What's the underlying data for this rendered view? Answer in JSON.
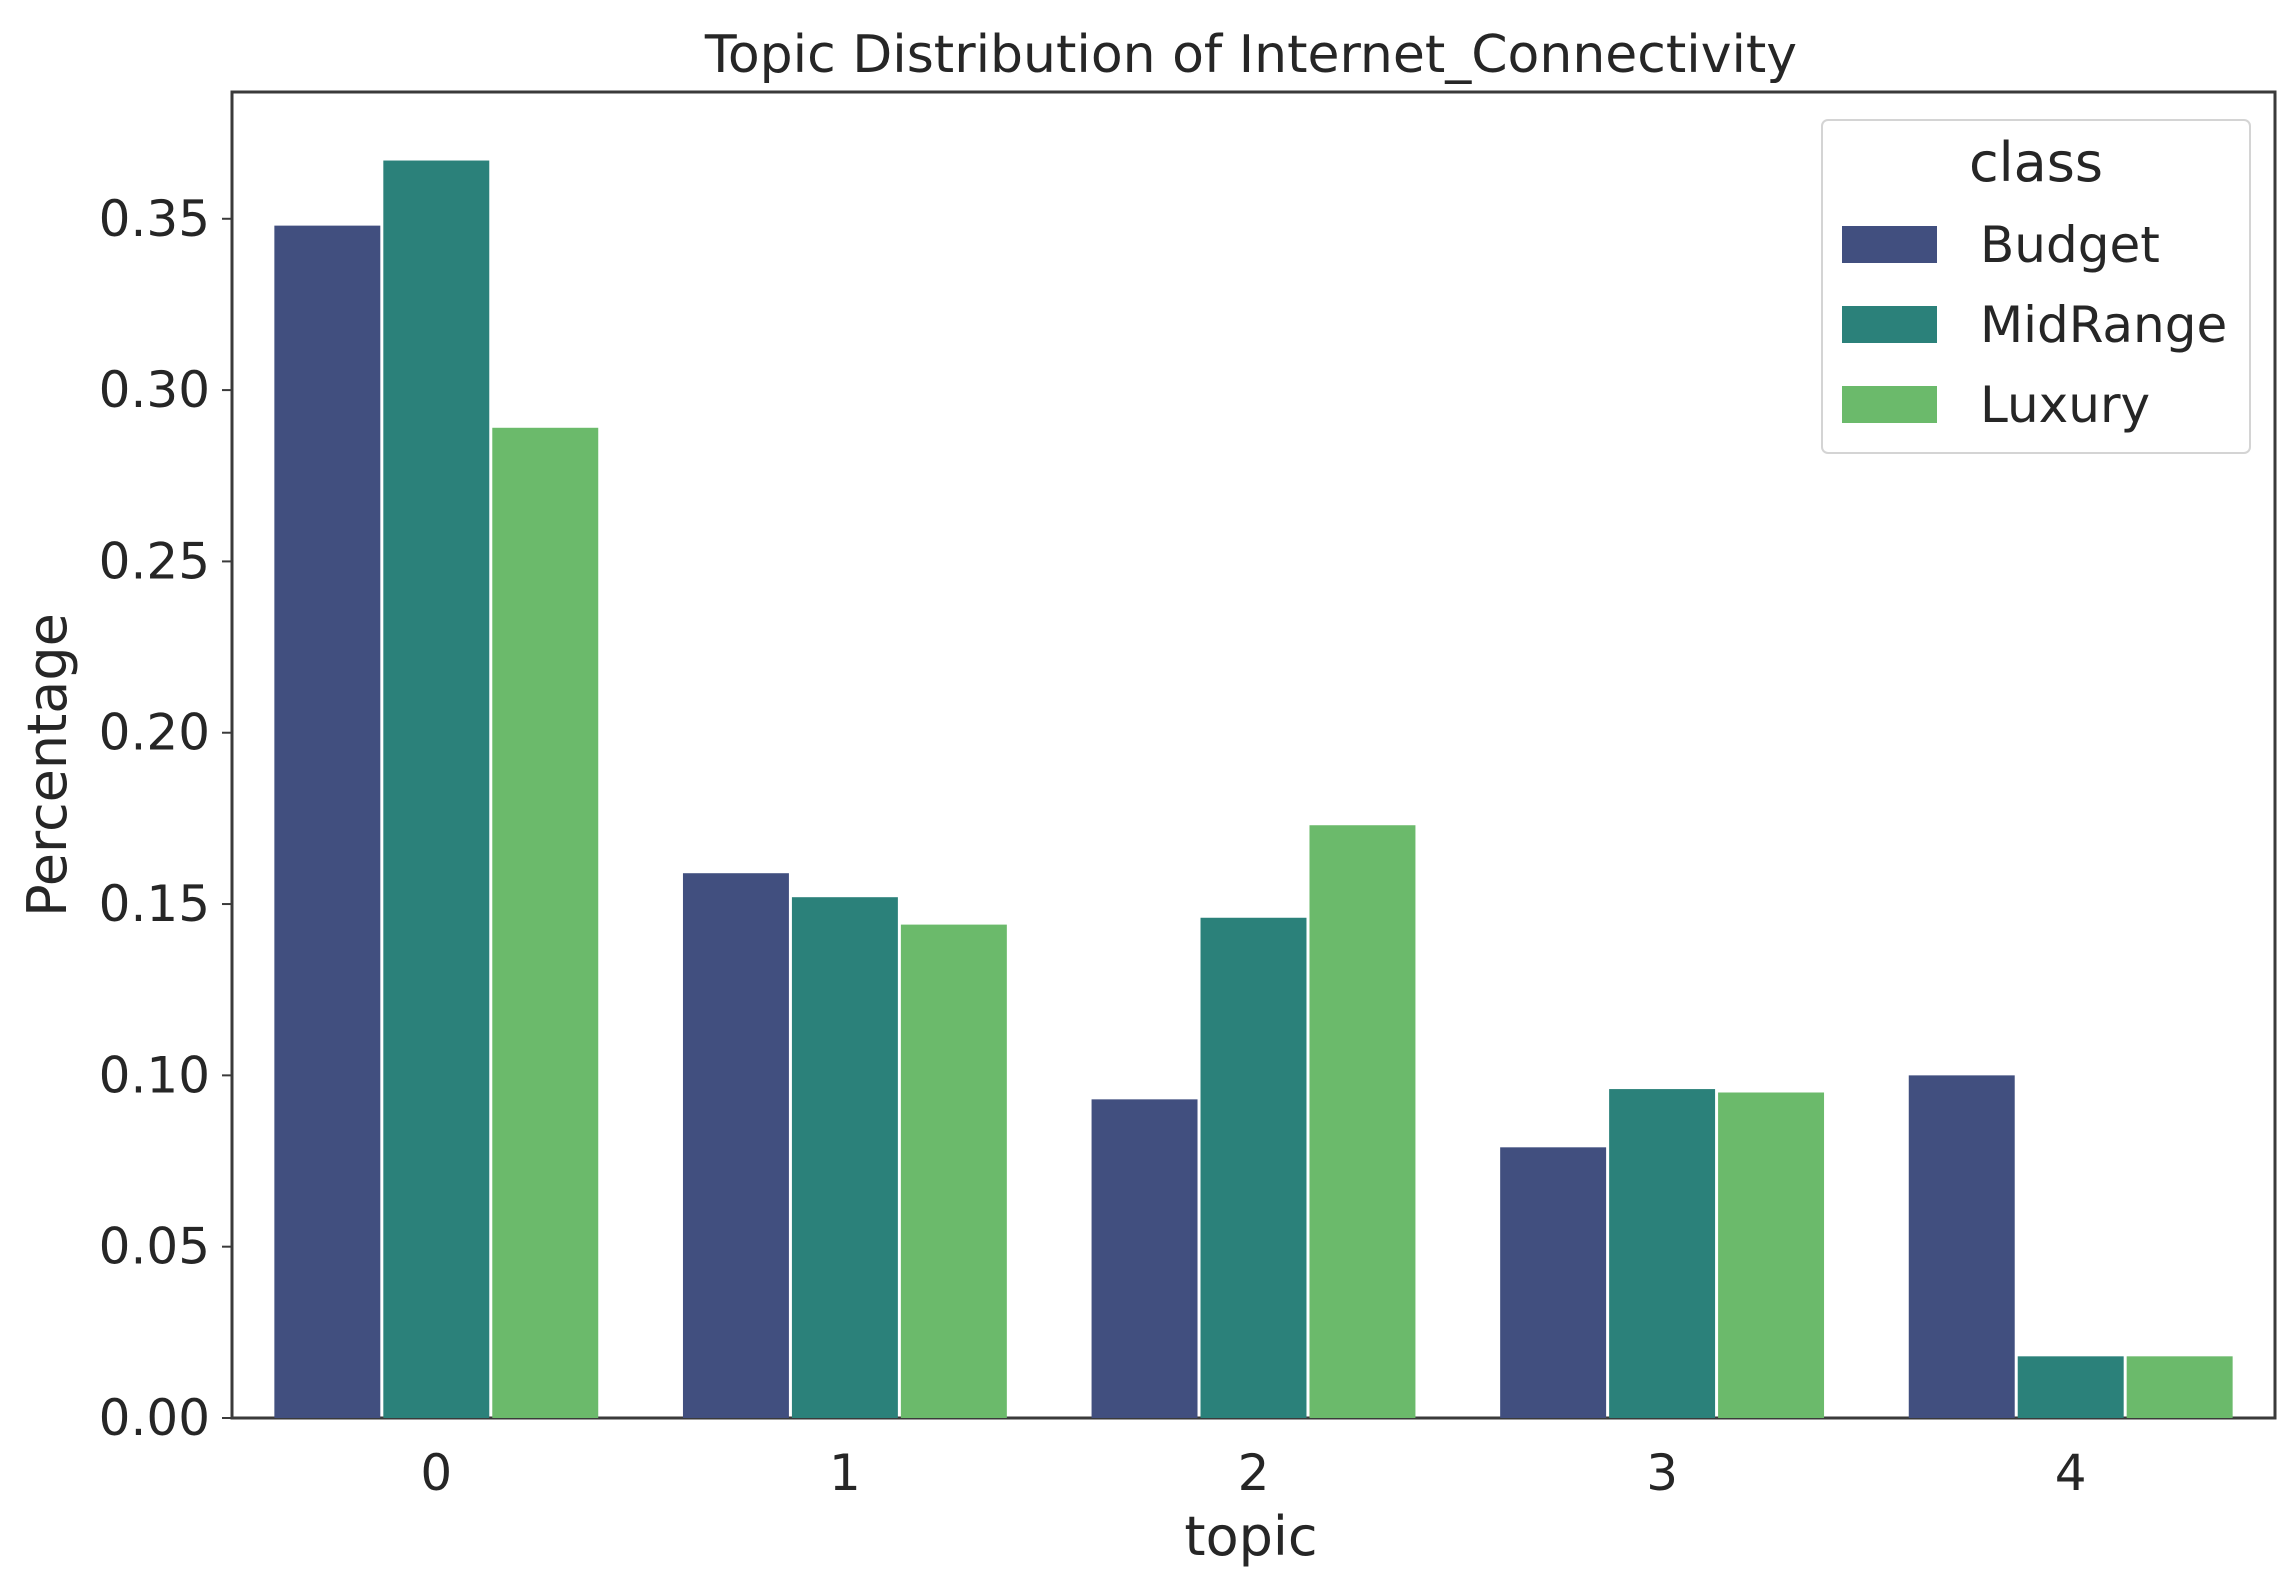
{
  "chart_data": {
    "type": "bar",
    "title": "Topic Distribution of Internet_Connectivity",
    "xlabel": "topic",
    "ylabel": "Percentage",
    "categories": [
      "0",
      "1",
      "2",
      "3",
      "4"
    ],
    "series": [
      {
        "name": "Budget",
        "color": "#414f7f",
        "values": [
          0.348,
          0.159,
          0.093,
          0.079,
          0.1
        ]
      },
      {
        "name": "MidRange",
        "color": "#2b817a",
        "values": [
          0.367,
          0.152,
          0.146,
          0.096,
          0.018
        ]
      },
      {
        "name": "Luxury",
        "color": "#6bba6b",
        "values": [
          0.289,
          0.144,
          0.173,
          0.095,
          0.018
        ]
      }
    ],
    "ylim": [
      0,
      0.387
    ],
    "yticks": [
      "0.00",
      "0.05",
      "0.10",
      "0.15",
      "0.20",
      "0.25",
      "0.30",
      "0.35"
    ],
    "grid": false,
    "legend": {
      "title": "class",
      "placement": "top-right"
    }
  }
}
